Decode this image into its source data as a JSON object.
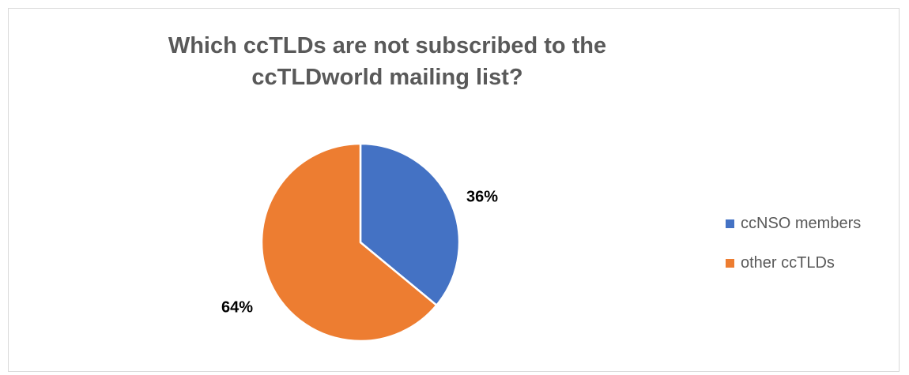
{
  "chart_data": {
    "type": "pie",
    "title": "Which ccTLDs are not subscribed to the ccTLDworld mailing list?",
    "categories": [
      "ccNSO members",
      "other ccTLDs"
    ],
    "values": [
      36,
      64
    ],
    "value_labels": [
      "36%",
      "64%"
    ],
    "colors": [
      "#4472C4",
      "#ED7D31"
    ],
    "start_angle_deg": 0,
    "direction": "clockwise",
    "legend_position": "right",
    "unit": "%"
  }
}
